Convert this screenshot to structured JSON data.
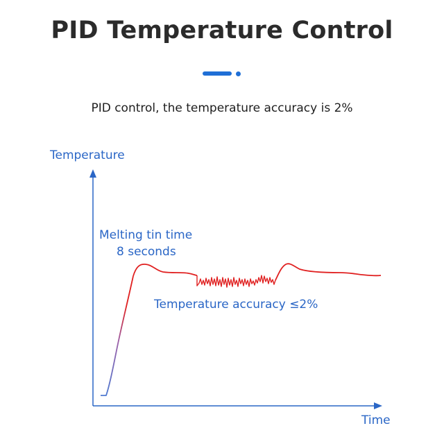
{
  "title": "PID Temperature Control",
  "subtitle": "PID control, the temperature accuracy is 2%",
  "diagram": {
    "y_axis_label": "Temperature",
    "x_axis_label": "Time",
    "annotation_melting_line1": "Melting tin time",
    "annotation_melting_line2": "8 seconds",
    "annotation_accuracy": "Temperature accuracy ≤2%"
  },
  "colors": {
    "accent": "#1f6fd6",
    "axis": "#2a66c6",
    "curve_start": "#4f7ad0",
    "curve_hot": "#e02020"
  }
}
